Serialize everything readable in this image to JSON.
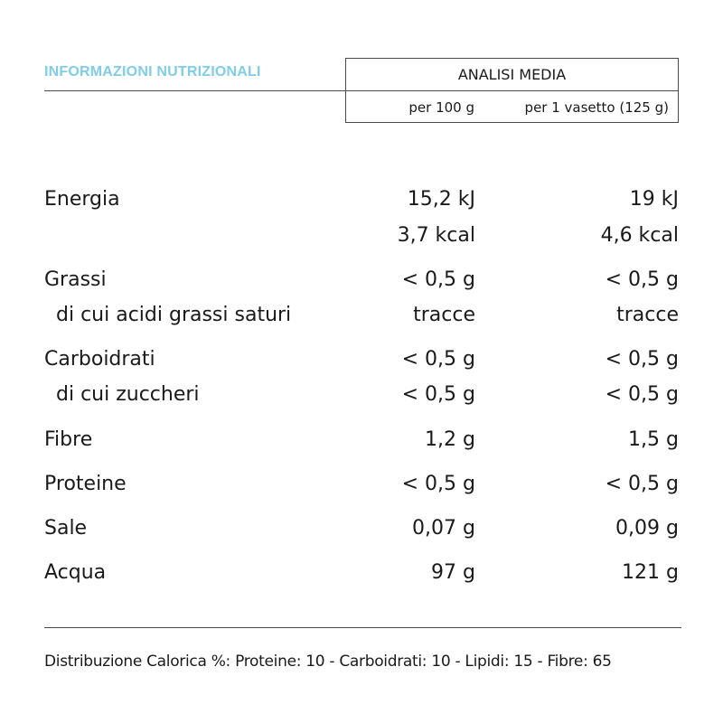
{
  "section_title": "INFORMAZIONI NUTRIZIONALI",
  "header": {
    "title": "ANALISI MEDIA",
    "col1": "per 100 g",
    "col2": "per 1 vasetto (125 g)"
  },
  "rows": [
    {
      "label": "Energia",
      "v1": "15,2 kJ",
      "v2": "19 kJ"
    },
    {
      "label": "",
      "v1": "3,7 kcal",
      "v2": "4,6 kcal"
    },
    {
      "label": "Grassi",
      "v1": "< 0,5 g",
      "v2": "< 0,5 g"
    },
    {
      "label": "di cui acidi grassi saturi",
      "v1": "tracce",
      "v2": "tracce"
    },
    {
      "label": "Carboidrati",
      "v1": "< 0,5 g",
      "v2": "< 0,5 g"
    },
    {
      "label": "di cui zuccheri",
      "v1": "< 0,5 g",
      "v2": "< 0,5 g"
    },
    {
      "label": "Fibre",
      "v1": "1,2 g",
      "v2": "1,5 g"
    },
    {
      "label": "Proteine",
      "v1": "< 0,5 g",
      "v2": "< 0,5 g"
    },
    {
      "label": "Sale",
      "v1": "0,07 g",
      "v2": "0,09 g"
    },
    {
      "label": "Acqua",
      "v1": "97 g",
      "v2": "121 g"
    }
  ],
  "footnote": "Distribuzione Calorica %: Proteine: 10 - Carboidrati: 10 - Lipidi: 15 - Fibre: 65"
}
